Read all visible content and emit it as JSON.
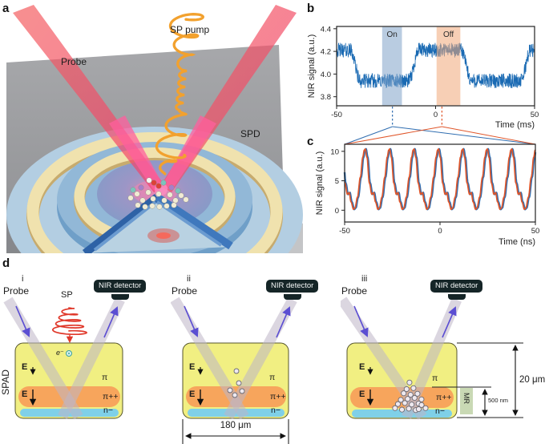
{
  "panels": {
    "a": {
      "letter": "a",
      "probe_label": "Probe",
      "sp_pump_label": "SP pump",
      "spd_label": "SPD"
    },
    "b": {
      "letter": "b"
    },
    "c": {
      "letter": "c"
    },
    "d": {
      "letter": "d",
      "detector_label": "NIR detector",
      "spad_label": "SPAD",
      "sub": [
        {
          "numeral": "i",
          "probe": "Probe",
          "sp_label": "SP",
          "electron_label": "e⁻",
          "e_field_weak": "E",
          "e_field_strong": "E",
          "pi": "π",
          "pi_plus": "π++",
          "n_minus": "n−"
        },
        {
          "numeral": "ii",
          "probe": "Probe",
          "e_field_weak": "E",
          "e_field_strong": "E",
          "pi": "π",
          "pi_plus": "π++",
          "n_minus": "n−",
          "width_label": "180 μm"
        },
        {
          "numeral": "iii",
          "probe": "Probe",
          "e_field_weak": "E",
          "e_field_strong": "E",
          "pi": "π",
          "pi_plus": "π++",
          "n_minus": "n−",
          "mr_label": "MR",
          "thickness_label": "500 nm",
          "depth_label": "20 μm"
        }
      ]
    }
  },
  "colors": {
    "trace_blue": "#1a6ab3",
    "on_blue": "#2f6db0",
    "off_orange": "#e0562a",
    "on_band": "#7fa3c8",
    "off_band": "#f0a878",
    "device_yellow": "#f1ef82",
    "device_orange": "#f7a55c",
    "device_blue": "#7fd0e8",
    "detector_bg": "#152527",
    "probe_arrow_violet": "#5b4ed2",
    "sp_red": "#e0392b",
    "spiral_orange": "#f2a12e"
  },
  "chart_data": [
    {
      "id": "b",
      "type": "line",
      "title": "",
      "ylabel": "NIR signal (a.u.)",
      "xlabel": "Time (ms)",
      "xlim": [
        -50,
        50
      ],
      "ylim": [
        3.72,
        4.42
      ],
      "xticks": [
        -50,
        0,
        50
      ],
      "yticks": [
        3.8,
        4.0,
        4.2,
        4.4
      ],
      "grid": false,
      "line_color": "#1a6ab3",
      "signal": {
        "description": "NIR probe signal vs time, square-wave modulation by SP pump",
        "start_level": "high",
        "high": 4.21,
        "low": 3.94,
        "noise_pp": 0.13,
        "transition_ms": 5,
        "edges": [
          {
            "x": -40.5,
            "to": "low"
          },
          {
            "x": -11.0,
            "to": "high"
          },
          {
            "x": 15.5,
            "to": "low"
          },
          {
            "x": 45.5,
            "to": "high"
          }
        ]
      },
      "regions": [
        {
          "label": "On",
          "x0": -27.0,
          "x1": -17.0,
          "color": "#7fa3c8",
          "connector_x": -21.8,
          "connector_color": "#2f6db0"
        },
        {
          "label": "Off",
          "x0": 0.5,
          "x1": 12.5,
          "color": "#f0a878",
          "connector_x": 3.2,
          "connector_color": "#e0562a"
        }
      ]
    },
    {
      "id": "c",
      "type": "line",
      "title": "",
      "ylabel": "NIR signal (a.u.)",
      "xlabel": "Time (ns)",
      "xlim": [
        -50,
        50
      ],
      "ylim": [
        -2,
        11.2
      ],
      "xticks": [
        -50,
        0,
        50
      ],
      "yticks": [
        0,
        5,
        10
      ],
      "grid": false,
      "series": [
        {
          "name": "On",
          "color": "#2f6db0",
          "x_offset": -0.4,
          "width": 2.4
        },
        {
          "name": "Off",
          "color": "#e0562a",
          "x_offset": 0.0,
          "width": 1.7
        }
      ],
      "waveform": {
        "description": "Periodic NIR modulation, On and Off traces overlapping",
        "period_ns": 12.8,
        "peak_x": -0.8,
        "peak": 10.4,
        "trough": 0.15,
        "keypoints": [
          [
            0.0,
            10.4
          ],
          [
            0.07,
            9.0
          ],
          [
            0.17,
            4.6
          ],
          [
            0.27,
            2.7
          ],
          [
            0.34,
            3.0
          ],
          [
            0.42,
            1.4
          ],
          [
            0.52,
            0.15
          ],
          [
            0.58,
            0.4
          ],
          [
            0.68,
            2.2
          ],
          [
            0.8,
            5.6
          ],
          [
            0.9,
            9.0
          ],
          [
            0.96,
            10.2
          ],
          [
            1.0,
            10.4
          ]
        ]
      }
    }
  ]
}
